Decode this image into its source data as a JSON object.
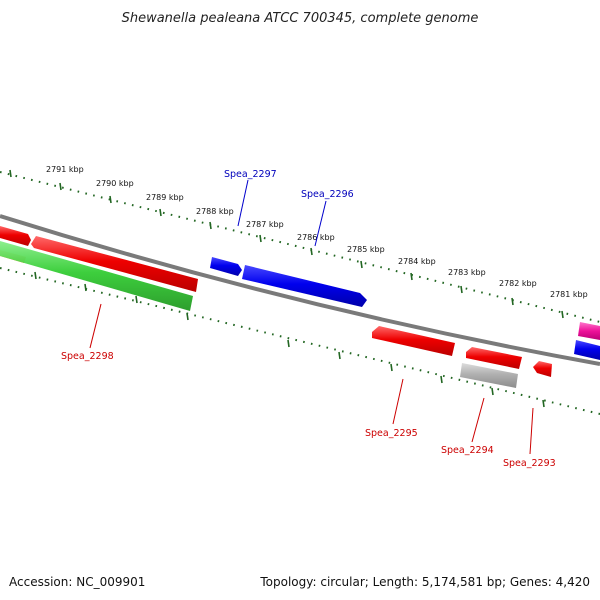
{
  "title": "Shewanella pealeana ATCC 700345, complete genome",
  "kbp_labels": [
    "2791 kbp",
    "2790 kbp",
    "2789 kbp",
    "2788 kbp",
    "2787 kbp",
    "2786 kbp",
    "2785 kbp",
    "2784 kbp",
    "2783 kbp",
    "2782 kbp",
    "2781 kbp"
  ],
  "genes": {
    "spea_2297": "Spea_2297",
    "spea_2296": "Spea_2296",
    "spea_2298": "Spea_2298",
    "spea_2295": "Spea_2295",
    "spea_2294": "Spea_2294",
    "spea_2293": "Spea_2293"
  },
  "footer": {
    "accession": "Accession: NC_009901",
    "summary": "Topology: circular; Length: 5,174,581 bp; Genes: 4,420"
  },
  "colors": {
    "forward_gene": "#0000dd",
    "reverse_gene": "#dd0000",
    "rna_gene": "#33bb33",
    "pseudo_gene": "#aaaaaa",
    "backbone": "#7a7a7a",
    "ticks": "#226622",
    "orange_feature": "#ff8800",
    "magenta_feature": "#ee1199"
  }
}
